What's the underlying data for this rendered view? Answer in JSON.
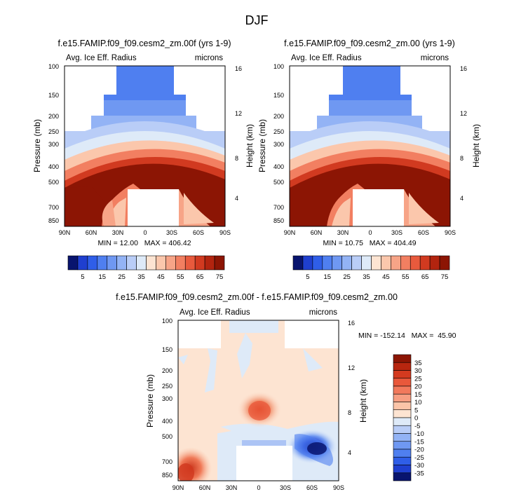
{
  "page_title": "DJF",
  "chart_data": [
    {
      "type": "heatmap",
      "title": "f.e15.FAMIP.f09_f09.cesm2_zm.00f (yrs 1-9)",
      "left_label": "Avg. Ice Eff. Radius",
      "right_label": "microns",
      "ylabel": "Pressure (mb)",
      "ylabel_right": "Height (km)",
      "y_ticks": [
        "100",
        "150",
        "200",
        "250",
        "300",
        "400",
        "500",
        "700",
        "850"
      ],
      "y_ticks_right": [
        "16",
        "12",
        "8",
        "4"
      ],
      "x_ticks": [
        "90N",
        "60N",
        "30N",
        "0",
        "30S",
        "60S",
        "90S"
      ],
      "stats": "MIN = 12.00   MAX = 406.42"
    },
    {
      "type": "heatmap",
      "title": "f.e15.FAMIP.f09_f09.cesm2_zm.00 (yrs 1-9)",
      "left_label": "Avg. Ice Eff. Radius",
      "right_label": "microns",
      "ylabel": "Pressure (mb)",
      "ylabel_right": "Height (km)",
      "y_ticks": [
        "100",
        "150",
        "200",
        "250",
        "300",
        "400",
        "500",
        "700",
        "850"
      ],
      "y_ticks_right": [
        "16",
        "12",
        "8",
        "4"
      ],
      "x_ticks": [
        "90N",
        "60N",
        "30N",
        "0",
        "30S",
        "60S",
        "90S"
      ],
      "stats": "MIN = 10.75   MAX = 404.49"
    },
    {
      "type": "heatmap",
      "title": "f.e15.FAMIP.f09_f09.cesm2_zm.00f - f.e15.FAMIP.f09_f09.cesm2_zm.00",
      "left_label": "Avg. Ice Eff. Radius",
      "right_label": "microns",
      "ylabel": "Pressure (mb)",
      "ylabel_right": "Height (km)",
      "y_ticks": [
        "100",
        "150",
        "200",
        "250",
        "300",
        "400",
        "500",
        "700",
        "850"
      ],
      "y_ticks_right": [
        "16",
        "12",
        "8",
        "4"
      ],
      "x_ticks": [
        "90N",
        "60N",
        "30N",
        "0",
        "30S",
        "60S",
        "90S"
      ],
      "stats": "MIN = -152.14   MAX =  45.90"
    }
  ],
  "colorbar_abs": {
    "labels": [
      "5",
      "15",
      "25",
      "35",
      "45",
      "55",
      "65",
      "75"
    ],
    "colors": [
      "#08146e",
      "#1f3fcf",
      "#2f5ee8",
      "#4f7ff0",
      "#6f98f2",
      "#93b3f5",
      "#b9cdf7",
      "#deeaf8",
      "#fde4d2",
      "#fbc7ac",
      "#f7a487",
      "#f27f61",
      "#e85a3d",
      "#d13a20",
      "#b2240f",
      "#8c1504"
    ]
  },
  "colorbar_diff": {
    "labels": [
      "35",
      "30",
      "25",
      "20",
      "15",
      "10",
      "5",
      "0",
      "-5",
      "-10",
      "-15",
      "-20",
      "-25",
      "-30",
      "-35"
    ],
    "colors": [
      "#8c1504",
      "#b8260f",
      "#d43a1f",
      "#e9583b",
      "#f2795c",
      "#f79e82",
      "#fbc4a8",
      "#fde4d2",
      "#deeaf8",
      "#b9cdf7",
      "#93b3f5",
      "#6f98f2",
      "#4f7ff0",
      "#2f5ee8",
      "#1f3fcf",
      "#08146e"
    ]
  }
}
